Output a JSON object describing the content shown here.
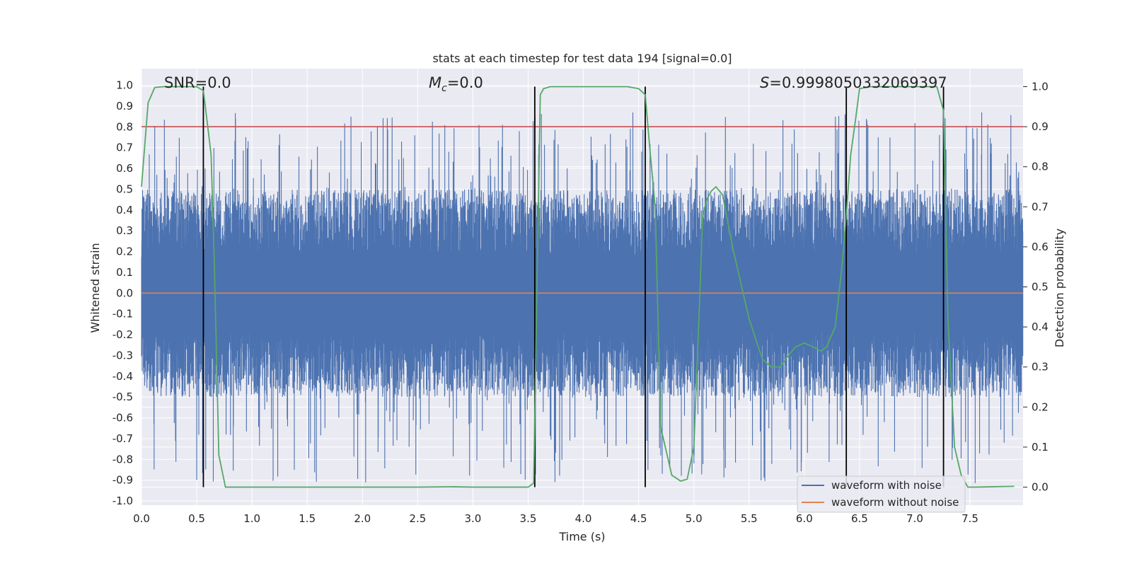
{
  "chart_data": {
    "type": "line",
    "title": "stats at each timestep for test data 194 [signal=0.0]",
    "xlabel": "Time (s)",
    "ylabel": "Whitened strain",
    "y2label": "Detection probability",
    "xlim": [
      0.0,
      7.98
    ],
    "ylim": [
      -1.02,
      1.08
    ],
    "y2lim": [
      -0.045,
      1.045
    ],
    "x_ticks": [
      "0.0",
      "0.5",
      "1.0",
      "1.5",
      "2.0",
      "2.5",
      "3.0",
      "3.5",
      "4.0",
      "4.5",
      "5.0",
      "5.5",
      "6.0",
      "6.5",
      "7.0",
      "7.5"
    ],
    "y_ticks": [
      "1.0",
      "0.9",
      "0.8",
      "0.7",
      "0.6",
      "0.5",
      "0.4",
      "0.3",
      "0.2",
      "0.1",
      "0.0",
      "-0.1",
      "-0.2",
      "-0.3",
      "-0.4",
      "-0.5",
      "-0.6",
      "-0.7",
      "-0.8",
      "-0.9",
      "-1.0"
    ],
    "y2_ticks": [
      "1.0",
      "0.9",
      "0.8",
      "0.7",
      "0.6",
      "0.5",
      "0.4",
      "0.3",
      "0.2",
      "0.1",
      "0.0"
    ],
    "annotations": {
      "snr": "SNR=0.0",
      "mc_symbol": "M",
      "mc_sub": "c",
      "mc_value": "=0.0",
      "s_symbol": "S",
      "s_value": "=0.9998050332069397"
    },
    "threshold_probability": 0.9,
    "boundary_lines_x": [
      0.56,
      3.56,
      4.56,
      6.38,
      7.26
    ],
    "series": [
      {
        "name": "waveform with noise",
        "color": "#4c72b0",
        "axis": "left",
        "envelope_upper": 0.5,
        "envelope_lower": -0.5,
        "peak_max": 0.87,
        "peak_min": -0.92
      },
      {
        "name": "waveform without noise",
        "color": "#dd8452",
        "axis": "left",
        "values_x": [
          0.0,
          7.98
        ],
        "values_y": [
          0.0,
          0.0
        ]
      },
      {
        "name": "detection probability",
        "color": "#55a868",
        "axis": "right",
        "x": [
          0.0,
          0.06,
          0.12,
          0.2,
          0.3,
          0.4,
          0.5,
          0.56,
          0.6,
          0.63,
          0.66,
          0.7,
          0.76,
          0.82,
          1.0,
          1.5,
          2.0,
          2.5,
          2.8,
          3.0,
          3.2,
          3.4,
          3.5,
          3.55,
          3.58,
          3.61,
          3.64,
          3.7,
          3.8,
          4.0,
          4.2,
          4.4,
          4.5,
          4.56,
          4.6,
          4.65,
          4.7,
          4.8,
          4.88,
          4.94,
          5.0,
          5.05,
          5.08,
          5.12,
          5.16,
          5.2,
          5.26,
          5.35,
          5.5,
          5.62,
          5.7,
          5.78,
          5.86,
          5.92,
          6.0,
          6.08,
          6.15,
          6.2,
          6.28,
          6.34,
          6.38,
          6.42,
          6.46,
          6.5,
          6.6,
          6.8,
          7.0,
          7.1,
          7.2,
          7.26,
          7.3,
          7.36,
          7.42,
          7.48,
          7.56,
          7.7,
          7.9
        ],
        "y": [
          0.75,
          0.96,
          0.998,
          1.0,
          1.0,
          1.0,
          1.0,
          0.99,
          0.9,
          0.83,
          0.55,
          0.08,
          0.0,
          0.0,
          0.0,
          0.0,
          0.0,
          0.0,
          0.001,
          0.0,
          0.0,
          0.0,
          0.0,
          0.01,
          0.5,
          0.98,
          0.995,
          1.0,
          1.0,
          1.0,
          1.0,
          1.0,
          0.995,
          0.98,
          0.85,
          0.7,
          0.15,
          0.03,
          0.015,
          0.02,
          0.1,
          0.45,
          0.68,
          0.72,
          0.74,
          0.75,
          0.73,
          0.6,
          0.42,
          0.32,
          0.3,
          0.3,
          0.33,
          0.35,
          0.36,
          0.35,
          0.34,
          0.35,
          0.4,
          0.55,
          0.68,
          0.83,
          0.91,
          0.995,
          1.0,
          1.0,
          1.0,
          1.0,
          1.0,
          0.94,
          0.42,
          0.1,
          0.03,
          0.0,
          0.0,
          0.001,
          0.002
        ]
      }
    ],
    "legend": {
      "position": "bottom-right",
      "entries": [
        "waveform with noise",
        "waveform without noise"
      ]
    },
    "grid": true
  },
  "colors": {
    "axes_bg": "#eaeaf2",
    "grid": "#ffffff",
    "threshold": "#c44e52",
    "boundary": "#000000"
  }
}
